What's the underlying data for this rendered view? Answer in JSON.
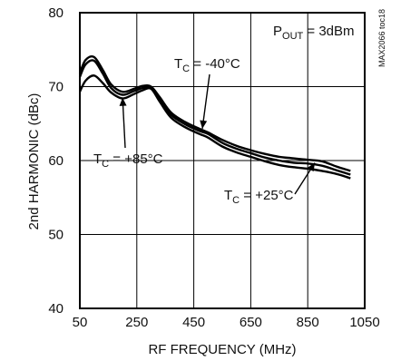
{
  "chart_data": {
    "type": "line",
    "title": "",
    "xlabel": "RF FREQUENCY (MHz)",
    "ylabel": "2nd HARMONIC (dBc)",
    "xlim": [
      50,
      1050
    ],
    "ylim": [
      40,
      80
    ],
    "xticks": [
      50,
      250,
      450,
      650,
      850,
      1050
    ],
    "yticks": [
      40,
      50,
      60,
      70,
      80
    ],
    "xtick_labels": [
      "50",
      "250",
      "450",
      "650",
      "850",
      "1050"
    ],
    "ytick_labels": [
      "40",
      "50",
      "60",
      "70",
      "80"
    ],
    "grid": true,
    "legend": "none",
    "condition": "POUT = 3dBm",
    "reference": "MAX2066 toc18",
    "series": [
      {
        "name": "TC = -40°C",
        "x": [
          50,
          70,
          100,
          130,
          160,
          200,
          240,
          270,
          300,
          330,
          370,
          420,
          470,
          500,
          550,
          600,
          650,
          700,
          750,
          800,
          850,
          900,
          950,
          1000
        ],
        "y": [
          71.8,
          73.6,
          74.0,
          72.3,
          70.3,
          69.3,
          69.7,
          70.1,
          70.0,
          68.6,
          66.5,
          65.2,
          64.3,
          63.8,
          62.8,
          62.0,
          61.4,
          60.9,
          60.5,
          60.3,
          60.1,
          59.9,
          59.2,
          58.6
        ]
      },
      {
        "name": "TC = +25°C",
        "x": [
          50,
          70,
          100,
          130,
          160,
          200,
          240,
          270,
          300,
          330,
          370,
          420,
          470,
          500,
          550,
          600,
          650,
          700,
          750,
          800,
          850,
          900,
          950,
          1000
        ],
        "y": [
          71.3,
          73.0,
          73.5,
          71.8,
          69.8,
          68.9,
          69.4,
          69.8,
          69.8,
          68.3,
          66.2,
          64.9,
          64.0,
          63.6,
          62.4,
          61.6,
          61.0,
          60.4,
          60.0,
          59.7,
          59.6,
          59.3,
          58.7,
          58.1
        ]
      },
      {
        "name": "TC = +85°C",
        "x": [
          50,
          70,
          100,
          130,
          160,
          200,
          240,
          270,
          300,
          330,
          370,
          420,
          470,
          500,
          550,
          600,
          650,
          700,
          750,
          800,
          850,
          900,
          950,
          1000
        ],
        "y": [
          69.3,
          70.8,
          71.5,
          70.5,
          69.2,
          68.4,
          69.0,
          69.5,
          69.7,
          68.0,
          65.8,
          64.5,
          63.6,
          63.1,
          61.9,
          61.1,
          60.5,
          59.9,
          59.4,
          59.1,
          58.9,
          58.6,
          58.2,
          57.6
        ]
      }
    ],
    "annotations": [
      {
        "label_main": "T",
        "label_sub": "C",
        "label_rest": " = -40°C",
        "arrow_to": [
          480,
          64.3
        ]
      },
      {
        "label_main": "T",
        "label_sub": "C",
        "label_rest": " = +85°C",
        "arrow_to": [
          200,
          68.5
        ]
      },
      {
        "label_main": "T",
        "label_sub": "C",
        "label_rest": " = +25°C",
        "arrow_to": [
          875,
          59.7
        ]
      }
    ],
    "condition_parts": {
      "main": "P",
      "sub": "OUT",
      "rest": " = 3dBm"
    }
  }
}
